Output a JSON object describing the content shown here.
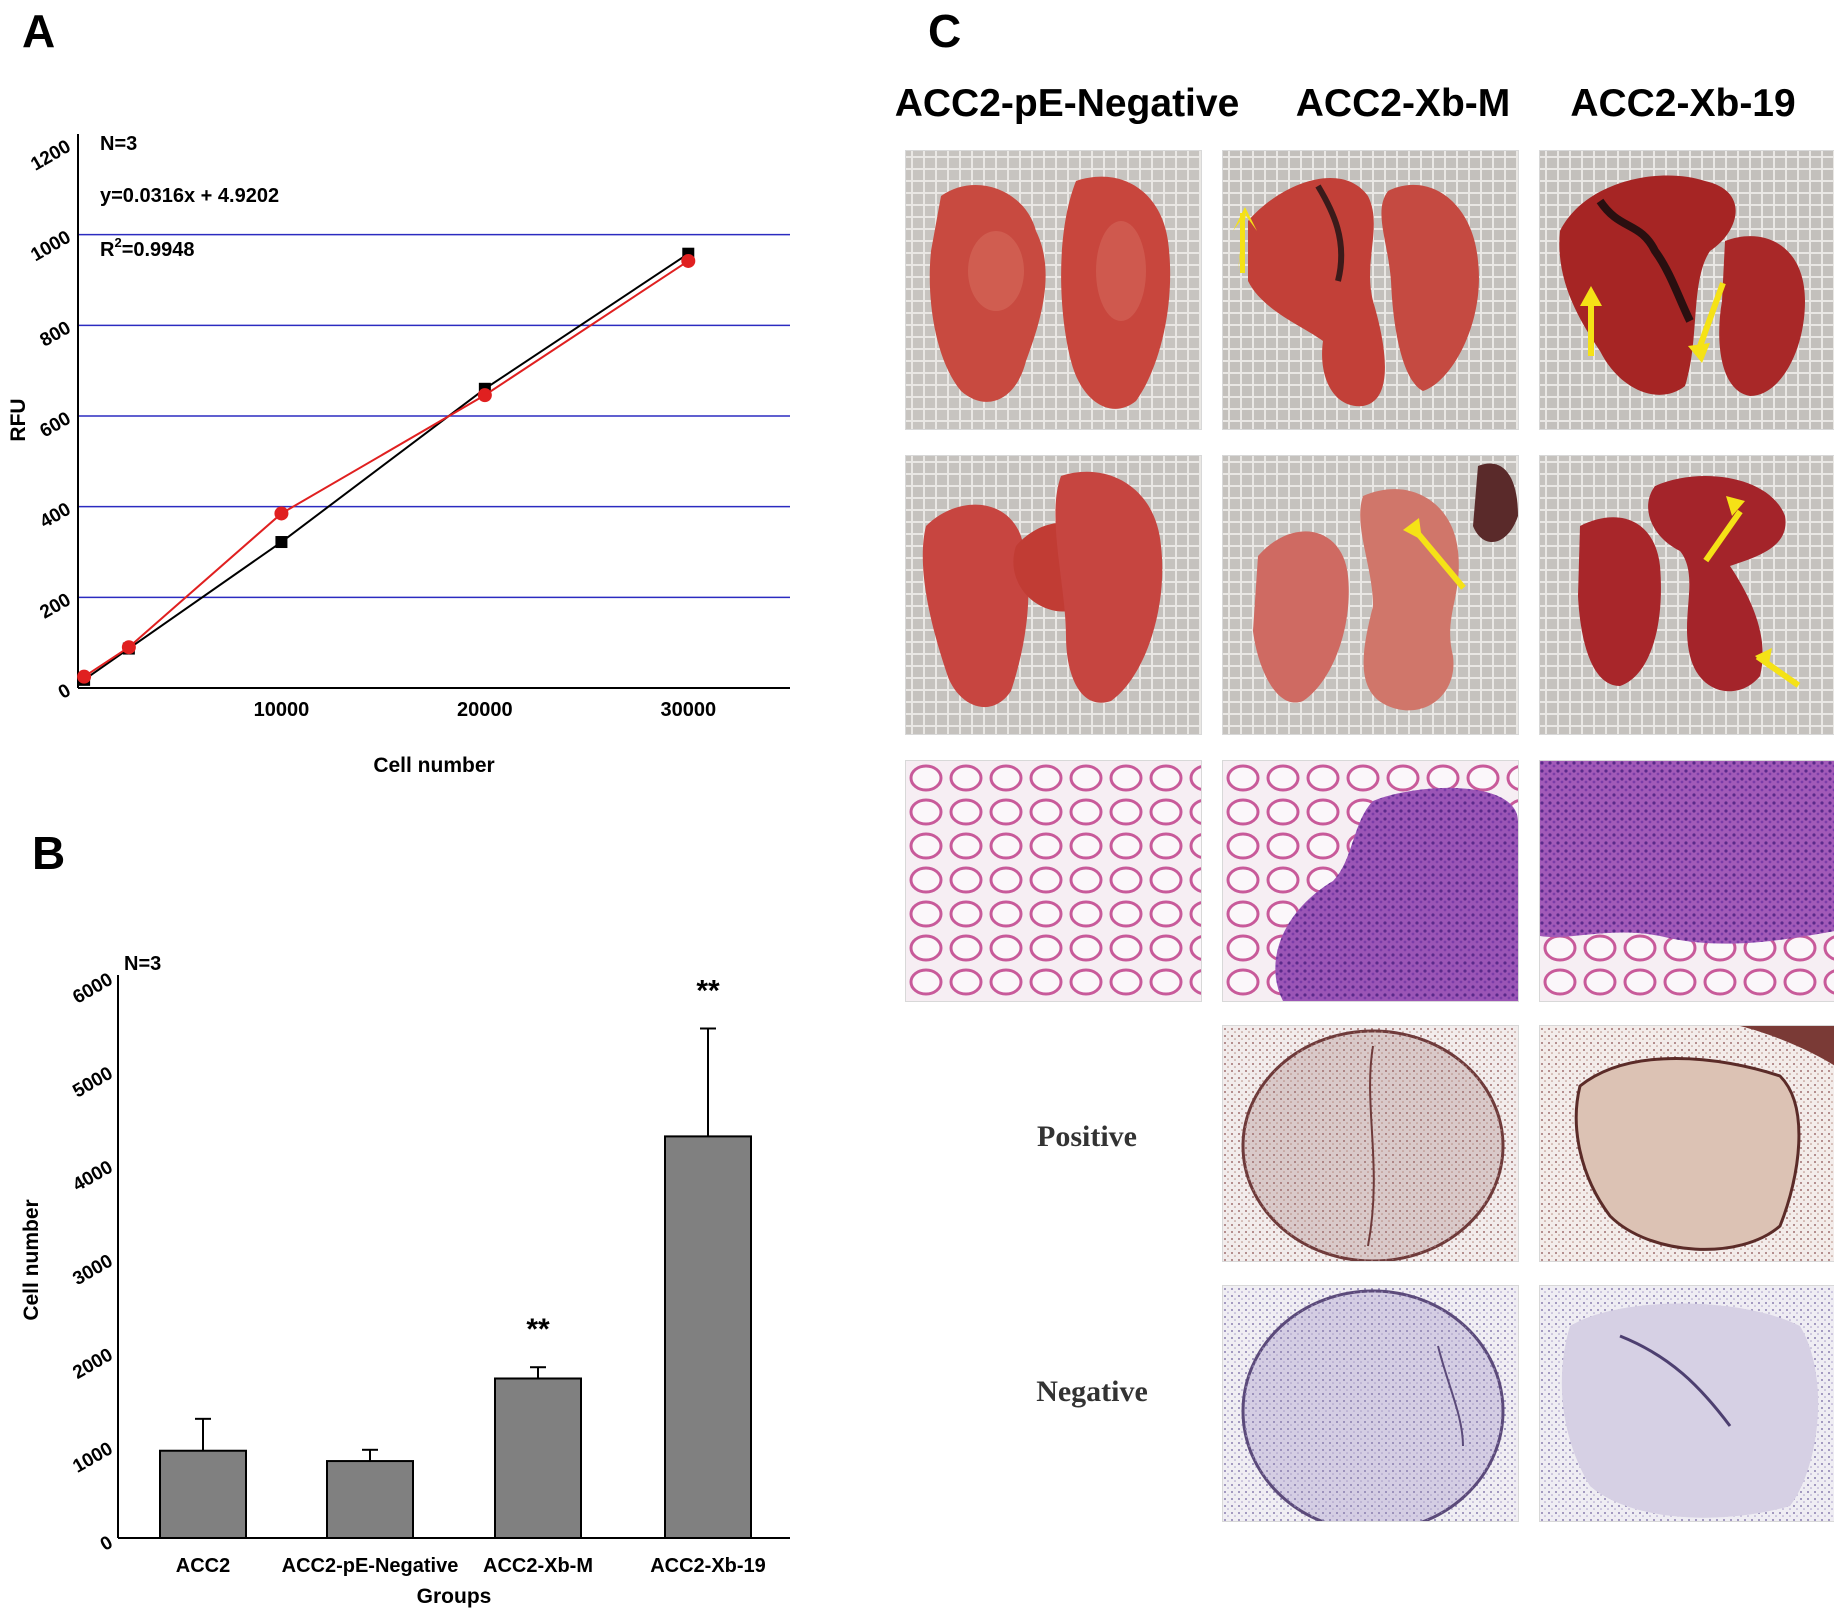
{
  "panels": {
    "a": "A",
    "b": "B",
    "c": "C"
  },
  "chart_data": [
    {
      "panel": "A",
      "type": "line",
      "xlabel": "Cell number",
      "ylabel": "RFU",
      "xlim": [
        0,
        35000
      ],
      "ylim": [
        0,
        1200
      ],
      "x_ticks": [
        10000,
        20000,
        30000
      ],
      "y_ticks": [
        0,
        200,
        400,
        600,
        800,
        1000,
        1200
      ],
      "grid": "horizontal",
      "annotations": [
        "N=3",
        "y=0.0316x + 4.9202",
        "=0.9948"
      ],
      "r_squared_prefix": "R",
      "r_squared_sup": "2",
      "series": [
        {
          "color": "#000000",
          "marker": "square",
          "x": [
            300,
            2500,
            10000,
            20000,
            30000
          ],
          "y": [
            18,
            87,
            322,
            660,
            958
          ]
        },
        {
          "color": "#e02020",
          "marker": "circle",
          "x": [
            300,
            2500,
            10000,
            20000,
            30000
          ],
          "y": [
            25,
            90,
            385,
            646,
            942
          ]
        }
      ]
    },
    {
      "panel": "B",
      "type": "bar",
      "xlabel": "Groups",
      "ylabel": "Cell number",
      "ylim": [
        0,
        6000
      ],
      "y_ticks": [
        0,
        1000,
        2000,
        3000,
        4000,
        5000,
        6000
      ],
      "annotations": [
        "N=3"
      ],
      "categories": [
        "ACC2",
        "ACC2-pE-Negative",
        "ACC2-Xb-M",
        "ACC2-Xb-19"
      ],
      "values": [
        930,
        820,
        1700,
        4280
      ],
      "errors": [
        340,
        120,
        120,
        1150
      ],
      "significance": [
        "",
        "",
        "**",
        "**"
      ],
      "bar_color": "#808080"
    }
  ],
  "panel_c": {
    "column_headers": [
      "ACC2-pE-Negative",
      "ACC2-Xb-M",
      "ACC2-Xb-19"
    ],
    "row_labels": {
      "positive": "Positive",
      "negative": "Negative"
    }
  }
}
